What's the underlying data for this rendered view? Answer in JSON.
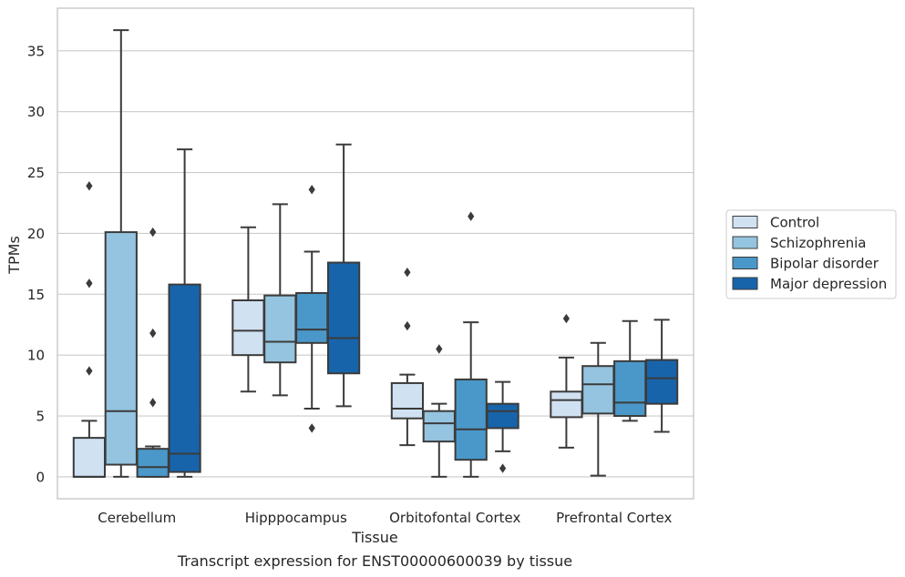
{
  "chart_data": {
    "type": "box",
    "caption": "Transcript expression for ENST00000600039 by tissue",
    "xlabel": "Tissue",
    "ylabel": "TPMs",
    "ylim": [
      -1.8,
      38.5
    ],
    "yticks": [
      0,
      5,
      10,
      15,
      20,
      25,
      30,
      35
    ],
    "grid": true,
    "legend_position": "right",
    "categories": [
      "Cerebellum",
      "Hipppocampus",
      "Orbitofontal Cortex",
      "Prefrontal Cortex"
    ],
    "series": [
      {
        "name": "Control",
        "color": "#d0e1f2",
        "boxes": [
          {
            "whislo": 0.0,
            "q1": 0.0,
            "med": 0.0,
            "q3": 3.2,
            "whishi": 4.6,
            "fliers": [
              8.7,
              15.9,
              23.9
            ]
          },
          {
            "whislo": 7.0,
            "q1": 10.0,
            "med": 12.0,
            "q3": 14.5,
            "whishi": 20.5,
            "fliers": []
          },
          {
            "whislo": 2.6,
            "q1": 4.8,
            "med": 5.6,
            "q3": 7.7,
            "whishi": 8.4,
            "fliers": [
              12.4,
              16.8
            ]
          },
          {
            "whislo": 2.4,
            "q1": 4.9,
            "med": 6.3,
            "q3": 7.0,
            "whishi": 9.8,
            "fliers": [
              13.0
            ]
          }
        ]
      },
      {
        "name": "Schizophrenia",
        "color": "#94c4df",
        "boxes": [
          {
            "whislo": 0.0,
            "q1": 1.0,
            "med": 5.4,
            "q3": 20.1,
            "whishi": 36.7,
            "fliers": []
          },
          {
            "whislo": 6.7,
            "q1": 9.4,
            "med": 11.1,
            "q3": 14.9,
            "whishi": 22.4,
            "fliers": []
          },
          {
            "whislo": 0.0,
            "q1": 2.9,
            "med": 4.4,
            "q3": 5.4,
            "whishi": 6.0,
            "fliers": [
              10.5
            ]
          },
          {
            "whislo": 0.1,
            "q1": 5.2,
            "med": 7.6,
            "q3": 9.1,
            "whishi": 11.0,
            "fliers": []
          }
        ]
      },
      {
        "name": "Bipolar disorder",
        "color": "#4a98c9",
        "boxes": [
          {
            "whislo": 0.0,
            "q1": 0.0,
            "med": 0.8,
            "q3": 2.3,
            "whishi": 2.5,
            "fliers": [
              6.1,
              11.8,
              20.1
            ]
          },
          {
            "whislo": 5.6,
            "q1": 11.0,
            "med": 12.1,
            "q3": 15.1,
            "whishi": 18.5,
            "fliers": [
              4.0,
              23.6
            ]
          },
          {
            "whislo": 0.0,
            "q1": 1.4,
            "med": 3.9,
            "q3": 8.0,
            "whishi": 12.7,
            "fliers": [
              21.4
            ]
          },
          {
            "whislo": 4.6,
            "q1": 5.0,
            "med": 6.1,
            "q3": 9.5,
            "whishi": 12.8,
            "fliers": []
          }
        ]
      },
      {
        "name": "Major depression",
        "color": "#1764ab",
        "boxes": [
          {
            "whislo": 0.0,
            "q1": 0.4,
            "med": 1.9,
            "q3": 15.8,
            "whishi": 26.9,
            "fliers": []
          },
          {
            "whislo": 5.8,
            "q1": 8.5,
            "med": 11.4,
            "q3": 17.6,
            "whishi": 27.3,
            "fliers": []
          },
          {
            "whislo": 2.1,
            "q1": 4.0,
            "med": 5.4,
            "q3": 6.0,
            "whishi": 7.8,
            "fliers": [
              0.7
            ]
          },
          {
            "whislo": 3.7,
            "q1": 6.0,
            "med": 8.1,
            "q3": 9.6,
            "whishi": 12.9,
            "fliers": []
          }
        ]
      }
    ]
  }
}
